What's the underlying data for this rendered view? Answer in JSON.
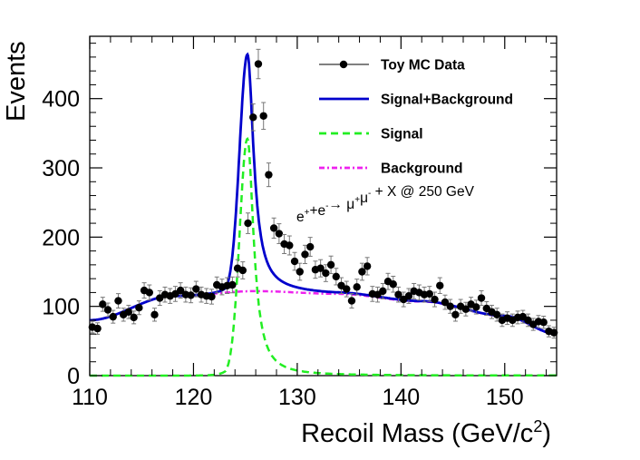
{
  "chart_data": {
    "type": "scatter",
    "xlabel": "Recoil Mass (GeV/c",
    "xlabel_sup": "2",
    "xlabel_end": ")",
    "ylabel": "Events",
    "xlim": [
      110,
      155
    ],
    "ylim": [
      0,
      490
    ],
    "x_ticks": [
      110,
      120,
      130,
      140,
      150
    ],
    "y_ticks": [
      0,
      100,
      200,
      300,
      400
    ],
    "annotation": {
      "parts": [
        {
          "text": "e",
          "sup": "+"
        },
        {
          "text": "+e",
          "sup": "-"
        },
        {
          "text": "→ μ",
          "sup": "+"
        },
        {
          "text": "μ",
          "sup": "-"
        },
        {
          "text": " + X @ 250 GeV",
          "sup": ""
        }
      ]
    },
    "legend": [
      {
        "label": "Toy MC Data",
        "style": "marker",
        "color": "#000000"
      },
      {
        "label": "Signal+Background",
        "style": "solid",
        "color": "#0000cc"
      },
      {
        "label": "Signal",
        "style": "dashed",
        "color": "#22ee22"
      },
      {
        "label": "Background",
        "style": "dashdot",
        "color": "#ee22ee"
      }
    ],
    "series": [
      {
        "name": "Toy MC Data",
        "type": "points",
        "x": [
          110.25,
          110.75,
          111.25,
          111.75,
          112.25,
          112.75,
          113.25,
          113.75,
          114.25,
          114.75,
          115.25,
          115.75,
          116.25,
          116.75,
          117.25,
          117.75,
          118.25,
          118.75,
          119.25,
          119.75,
          120.25,
          120.75,
          121.25,
          121.75,
          122.25,
          122.75,
          123.25,
          123.75,
          124.25,
          124.75,
          125.25,
          125.75,
          126.25,
          126.75,
          127.25,
          127.75,
          128.25,
          128.75,
          129.25,
          129.75,
          130.25,
          130.75,
          131.25,
          131.75,
          132.25,
          132.75,
          133.25,
          133.75,
          134.25,
          134.75,
          135.25,
          135.75,
          136.25,
          136.75,
          137.25,
          137.75,
          138.25,
          138.75,
          139.25,
          139.75,
          140.25,
          140.75,
          141.25,
          141.75,
          142.25,
          142.75,
          143.25,
          143.75,
          144.25,
          144.75,
          145.25,
          145.75,
          146.25,
          146.75,
          147.25,
          147.75,
          148.25,
          148.75,
          149.25,
          149.75,
          150.25,
          150.75,
          151.25,
          151.75,
          152.25,
          152.75,
          153.25,
          153.75,
          154.25,
          154.75
        ],
        "y": [
          70,
          68,
          103,
          95,
          85,
          108,
          88,
          92,
          84,
          98,
          123,
          120,
          88,
          112,
          117,
          115,
          118,
          123,
          117,
          116,
          125,
          117,
          115,
          114,
          131,
          128,
          130,
          131,
          155,
          152,
          220,
          373,
          450,
          375,
          290,
          213,
          205,
          190,
          188,
          165,
          150,
          175,
          186,
          153,
          155,
          148,
          160,
          143,
          130,
          125,
          108,
          128,
          150,
          158,
          118,
          117,
          122,
          136,
          132,
          117,
          110,
          115,
          122,
          120,
          117,
          118,
          110,
          130,
          106,
          100,
          88,
          100,
          96,
          103,
          99,
          112,
          97,
          92,
          88,
          80,
          83,
          80,
          84,
          85,
          80,
          74,
          78,
          77,
          64,
          62
        ]
      },
      {
        "name": "Signal+Background",
        "type": "curve",
        "color": "#0000cc"
      },
      {
        "name": "Signal",
        "type": "curve",
        "color": "#22ee22"
      },
      {
        "name": "Background",
        "type": "curve",
        "color": "#ee22ee"
      }
    ],
    "model": {
      "signal_peak_x": 125.2,
      "signal_peak_y": 342,
      "signal_width": 0.75,
      "background_points": [
        [
          110,
          80
        ],
        [
          118,
          115
        ],
        [
          126,
          122
        ],
        [
          134,
          118
        ],
        [
          142,
          107
        ],
        [
          150,
          86
        ],
        [
          155,
          60
        ]
      ]
    }
  }
}
